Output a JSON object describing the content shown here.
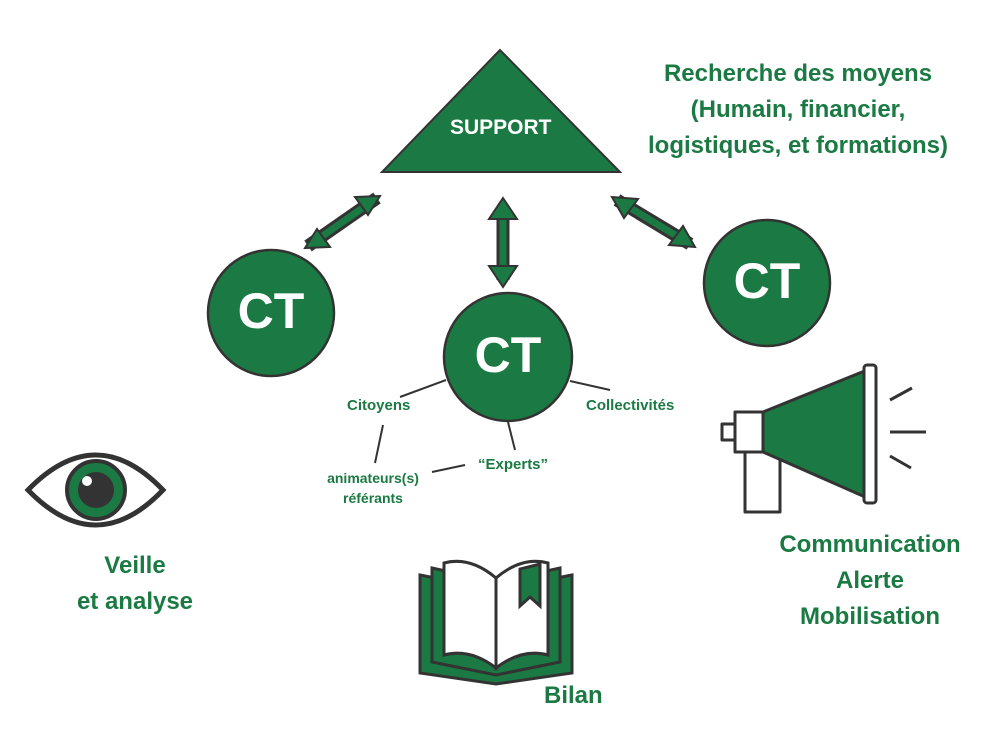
{
  "support": {
    "label": "SUPPORT"
  },
  "moyens": {
    "line1": "Recherche des moyens",
    "line2": "(Humain, financier,",
    "line3": "logistiques, et formations)"
  },
  "ct_nodes": {
    "left": "CT",
    "center": "CT",
    "right": "CT"
  },
  "actors": {
    "citoyens": "Citoyens",
    "collectivites": "Collectivités",
    "experts": "“Experts”",
    "animateurs_line1": "animateurs(s)",
    "animateurs_line2": "référants"
  },
  "veille": {
    "line1": "Veille",
    "line2": "et analyse"
  },
  "bilan": {
    "label": "Bilan"
  },
  "communication": {
    "line1": "Communication",
    "line2": "Alerte",
    "line3": "Mobilisation"
  },
  "colors": {
    "primary": "#1b7a43",
    "outline": "#333333",
    "background": "#ffffff"
  },
  "icons": [
    "eye-icon",
    "book-icon",
    "megaphone-icon",
    "double-arrow-icon"
  ]
}
